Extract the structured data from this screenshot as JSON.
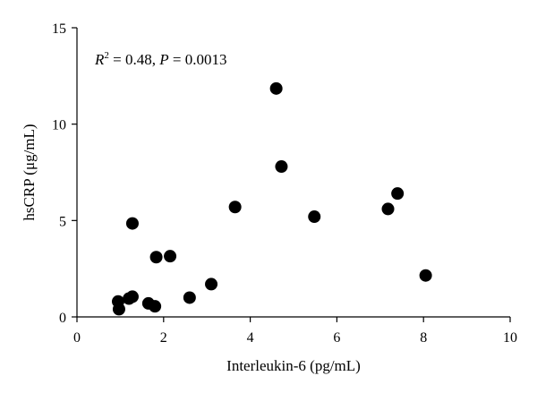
{
  "chart_data": {
    "type": "scatter",
    "xlabel": "Interleukin-6 (pg/mL)",
    "ylabel": "hsCRP (μg/mL)",
    "xlim": [
      0,
      10
    ],
    "ylim": [
      0,
      15
    ],
    "x_ticks": [
      0,
      2,
      4,
      6,
      8,
      10
    ],
    "y_ticks": [
      0,
      5,
      10,
      15
    ],
    "grid": false,
    "annotation": {
      "r2_label": "R",
      "r2_sup": "2",
      "r2_value": " = 0.48, ",
      "p_label": "P",
      "p_value": " = 0.0013"
    },
    "points": [
      {
        "x": 0.95,
        "y": 0.8
      },
      {
        "x": 0.97,
        "y": 0.4
      },
      {
        "x": 1.2,
        "y": 0.95
      },
      {
        "x": 1.28,
        "y": 1.05
      },
      {
        "x": 1.28,
        "y": 4.85
      },
      {
        "x": 1.65,
        "y": 0.7
      },
      {
        "x": 1.8,
        "y": 0.55
      },
      {
        "x": 1.83,
        "y": 3.1
      },
      {
        "x": 2.15,
        "y": 3.15
      },
      {
        "x": 2.6,
        "y": 1.0
      },
      {
        "x": 3.1,
        "y": 1.7
      },
      {
        "x": 3.65,
        "y": 5.7
      },
      {
        "x": 4.6,
        "y": 11.85
      },
      {
        "x": 4.72,
        "y": 7.8
      },
      {
        "x": 5.48,
        "y": 5.2
      },
      {
        "x": 7.18,
        "y": 5.6
      },
      {
        "x": 7.4,
        "y": 6.4
      },
      {
        "x": 8.05,
        "y": 2.15
      }
    ]
  }
}
